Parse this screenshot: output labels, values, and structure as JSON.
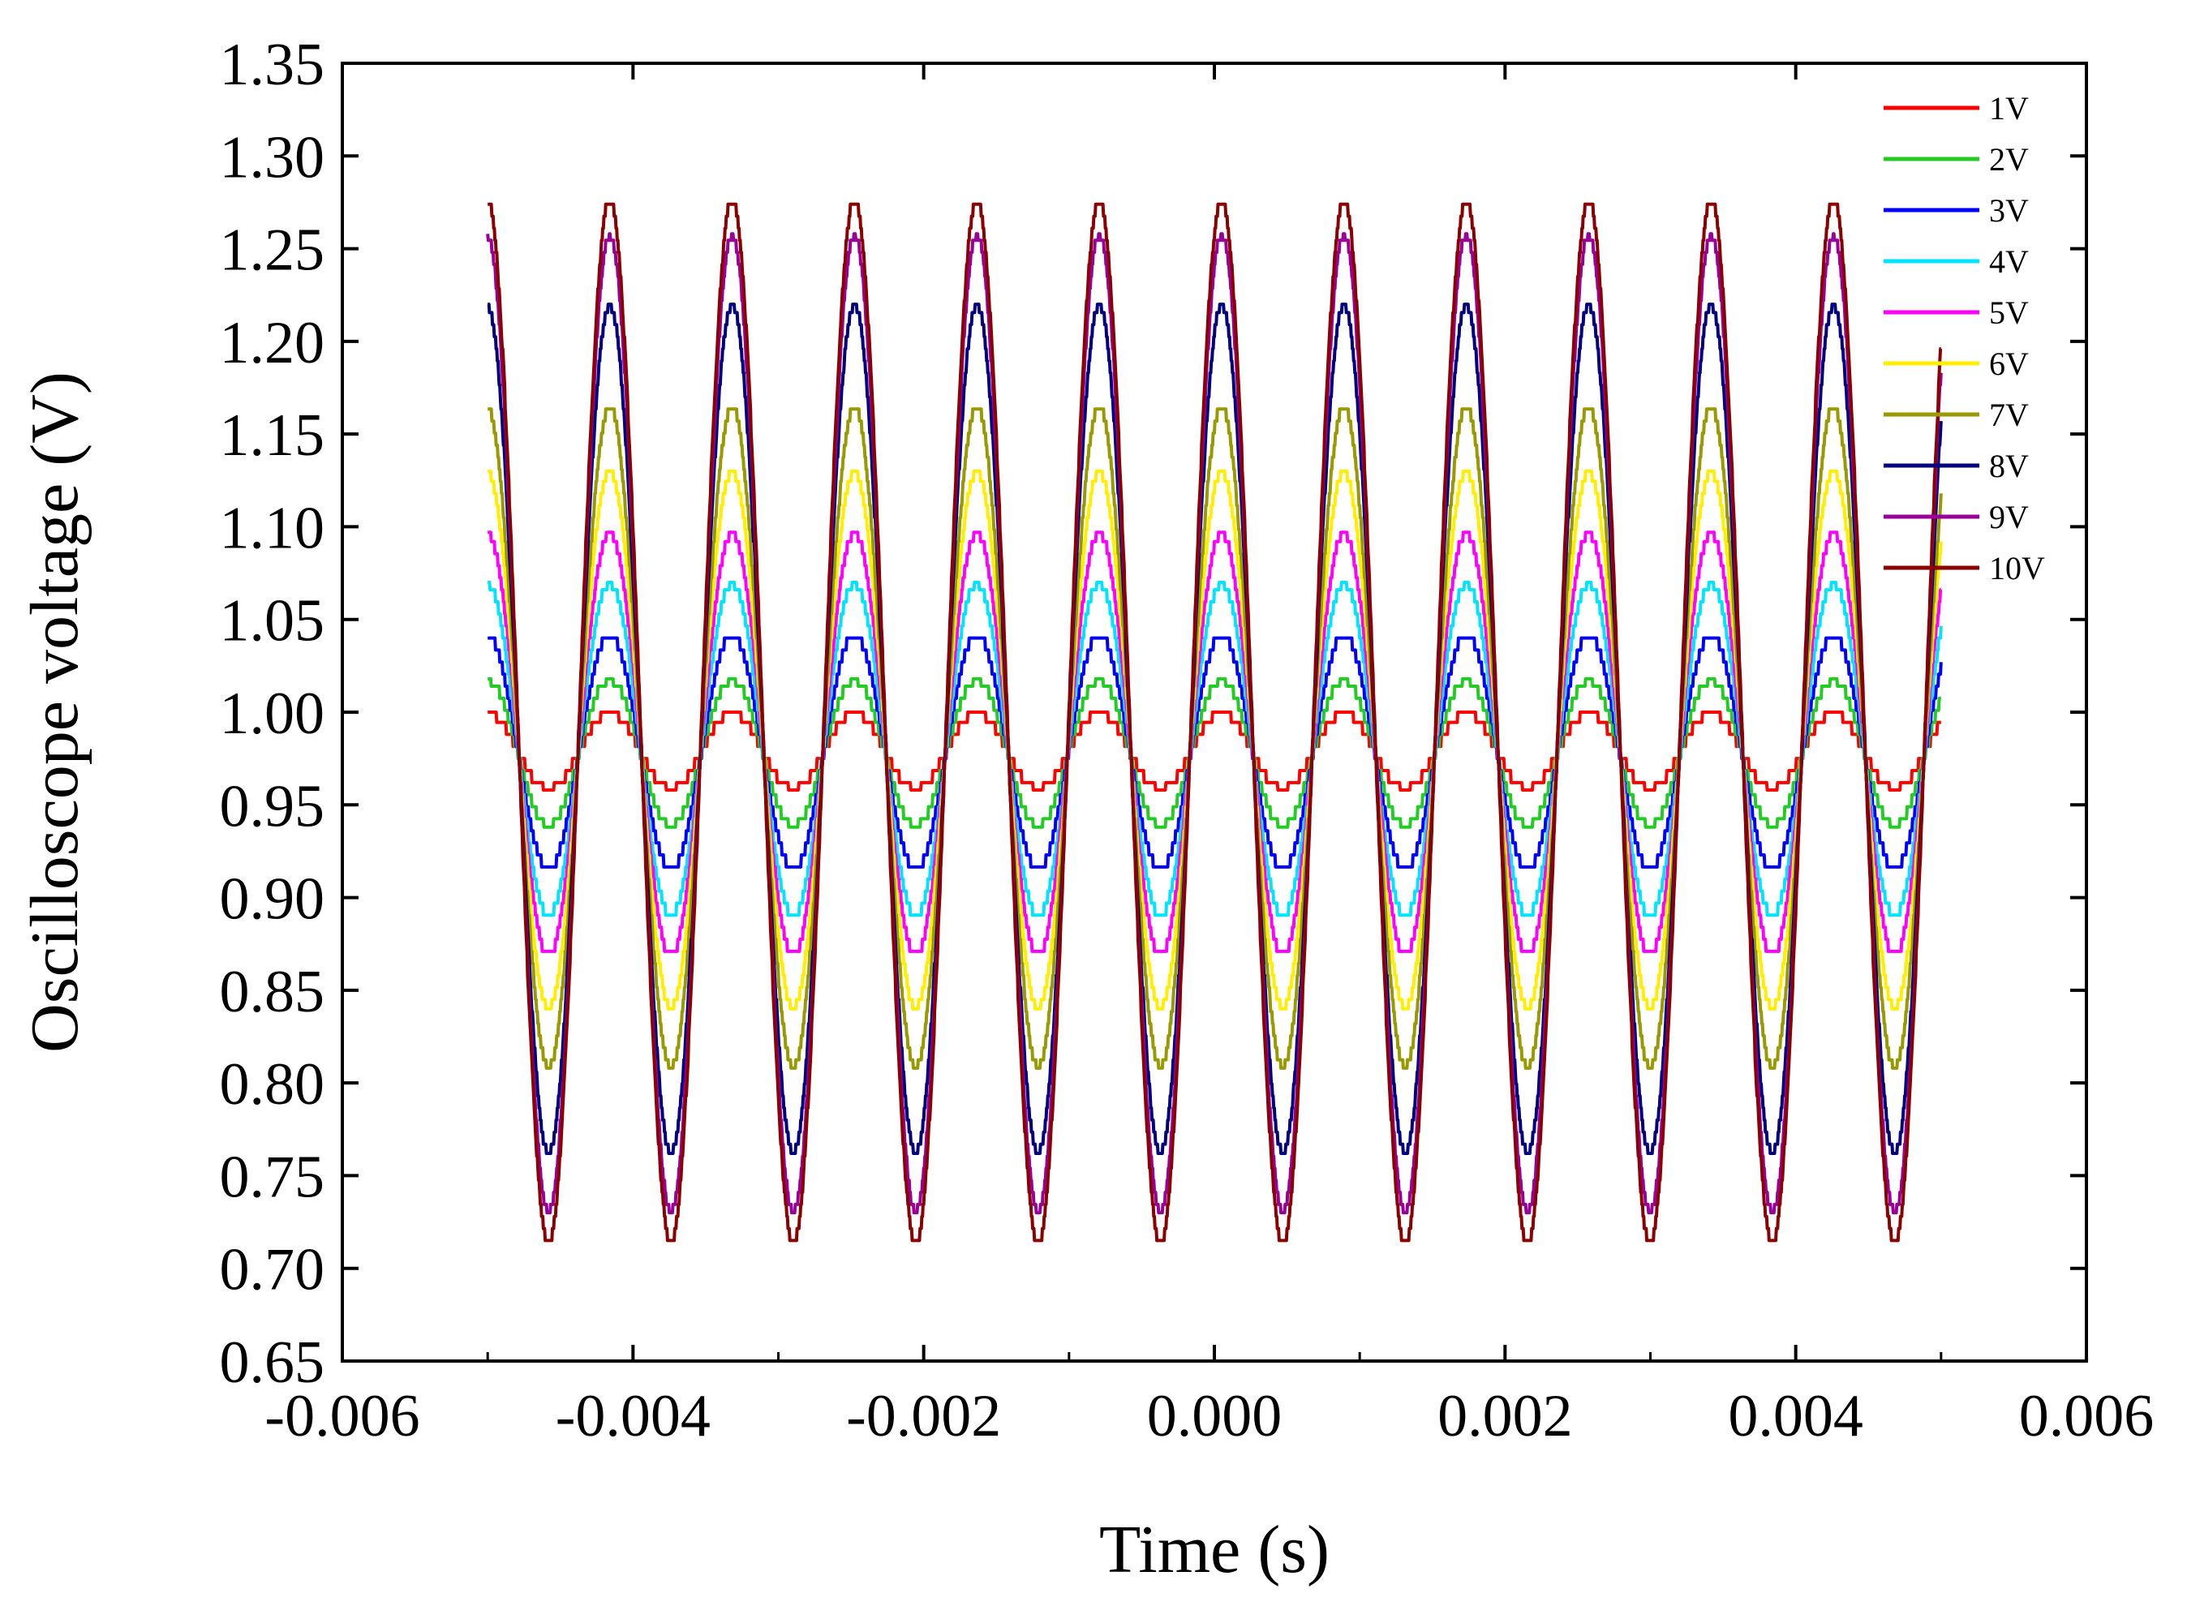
{
  "chart_data": {
    "type": "line",
    "title": "",
    "xlabel": "Time (s)",
    "ylabel": "Oscilloscope voltage (V)",
    "xlim": [
      -0.006,
      0.006
    ],
    "ylim": [
      0.65,
      1.35
    ],
    "x_ticks": [
      -0.006,
      -0.004,
      -0.002,
      0.0,
      0.002,
      0.004,
      0.006
    ],
    "x_tick_labels": [
      "-0.006",
      "-0.004",
      "-0.002",
      "0.000",
      "0.002",
      "0.004",
      "0.006"
    ],
    "y_ticks": [
      0.65,
      0.7,
      0.75,
      0.8,
      0.85,
      0.9,
      0.95,
      1.0,
      1.05,
      1.1,
      1.15,
      1.2,
      1.25,
      1.3,
      1.35
    ],
    "y_tick_labels": [
      "0.65",
      "0.70",
      "0.75",
      "0.80",
      "0.85",
      "0.90",
      "0.95",
      "1.00",
      "1.05",
      "1.10",
      "1.15",
      "1.20",
      "1.25",
      "1.30",
      "1.35"
    ],
    "legend_position": "top-right",
    "grid": false,
    "signal": {
      "t_start": -0.005,
      "t_end": 0.005,
      "period": 0.000842,
      "peak_time": -0.00416,
      "quantization_step": 0.0065
    },
    "series": [
      {
        "name": "1V",
        "color": "#ff0000",
        "max": 1.0,
        "min": 0.958
      },
      {
        "name": "2V",
        "color": "#22cc22",
        "max": 1.018,
        "min": 0.938
      },
      {
        "name": "3V",
        "color": "#0000ff",
        "max": 1.042,
        "min": 0.915
      },
      {
        "name": "4V",
        "color": "#00e5ff",
        "max": 1.07,
        "min": 0.89
      },
      {
        "name": "5V",
        "color": "#ff00ff",
        "max": 1.097,
        "min": 0.868
      },
      {
        "name": "6V",
        "color": "#ffee00",
        "max": 1.13,
        "min": 0.84
      },
      {
        "name": "7V",
        "color": "#999900",
        "max": 1.165,
        "min": 0.808
      },
      {
        "name": "8V",
        "color": "#000080",
        "max": 1.22,
        "min": 0.762
      },
      {
        "name": "9V",
        "color": "#990099",
        "max": 1.258,
        "min": 0.73
      },
      {
        "name": "10V",
        "color": "#8b0000",
        "max": 1.277,
        "min": 0.713
      }
    ]
  }
}
